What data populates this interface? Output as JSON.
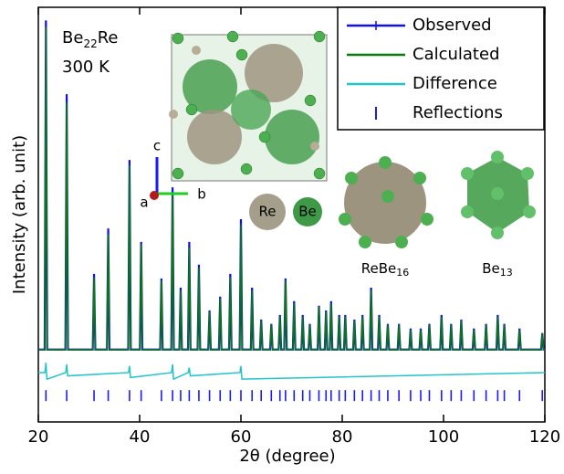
{
  "chart_data": {
    "type": "line",
    "xlabel": "2θ (degree)",
    "ylabel": "Intensity (arb. unit)",
    "xlim": [
      20,
      120
    ],
    "xticks": [
      20,
      40,
      60,
      80,
      100,
      120
    ],
    "ylim": [
      -22,
      104
    ],
    "legend": "upper right",
    "annotations": {
      "compound": [
        "Be",
        "22",
        "Re"
      ],
      "temperature": "300 K",
      "axis_c": "c",
      "axis_a": "a",
      "axis_b": "b",
      "atom_re": "Re",
      "atom_be": "Be",
      "poly_rebe": [
        "ReBe",
        "16"
      ],
      "poly_be": [
        "Be",
        "13"
      ]
    },
    "x": [
      20,
      21.25,
      21.5,
      21.75,
      25.35,
      25.6,
      25.85,
      30.75,
      31,
      31.25,
      33.55,
      33.8,
      34.05,
      37.75,
      38,
      38.25,
      40.05,
      40.3,
      40.55,
      44.05,
      44.3,
      44.55,
      46.25,
      46.5,
      46.75,
      47.85,
      48.1,
      48.35,
      49.55,
      49.8,
      50.05,
      51.45,
      51.7,
      51.95,
      53.55,
      53.8,
      54.05,
      55.65,
      55.9,
      56.15,
      57.65,
      57.9,
      58.15,
      59.75,
      60,
      60.25,
      61.95,
      62.2,
      62.45,
      63.75,
      64,
      64.25,
      65.75,
      66,
      66.25,
      67.45,
      67.7,
      67.95,
      68.55,
      68.8,
      69.05,
      70.25,
      70.5,
      70.75,
      71.95,
      72.2,
      72.45,
      73.35,
      73.6,
      73.85,
      75.15,
      75.4,
      75.65,
      76.55,
      76.8,
      77.05,
      77.55,
      77.8,
      78.05,
      79.15,
      79.4,
      79.65,
      80.35,
      80.6,
      80.85,
      82.15,
      82.4,
      82.65,
      83.75,
      84,
      84.25,
      85.45,
      85.7,
      85.95,
      87.05,
      87.3,
      87.55,
      88.75,
      89,
      89.25,
      90.95,
      91.2,
      91.45,
      93.25,
      93.5,
      93.75,
      95.25,
      95.5,
      95.75,
      96.95,
      97.2,
      97.45,
      99.35,
      99.6,
      99.85,
      101.25,
      101.5,
      101.75,
      103.25,
      103.5,
      103.75,
      105.75,
      106,
      106.25,
      108.15,
      108.4,
      108.65,
      110.45,
      110.7,
      110.95,
      111.75,
      112,
      112.25,
      114.75,
      115,
      115.25,
      119.25,
      119.5,
      119.75,
      120
    ],
    "series": [
      {
        "name": "Observed",
        "color": "#1010e8",
        "values": [
          0,
          0,
          100,
          0,
          0,
          77.6,
          0,
          0,
          23,
          0,
          0,
          36.8,
          0,
          0,
          57.6,
          0,
          0,
          32.7,
          0,
          0,
          21.6,
          0,
          0,
          49.3,
          0,
          0,
          18.8,
          0,
          0,
          32.7,
          0,
          0,
          25.8,
          0,
          0,
          11.9,
          0,
          0,
          16.1,
          0,
          0,
          23,
          0,
          0,
          39.6,
          0,
          0,
          18.8,
          0,
          0,
          9.1,
          0,
          0,
          7.8,
          0,
          0,
          10.5,
          0,
          0,
          21.6,
          0,
          0,
          14.7,
          0,
          0,
          10.5,
          0,
          0,
          7.8,
          0,
          0,
          13.3,
          0,
          0,
          11.9,
          0,
          0,
          14.7,
          0,
          0,
          10.5,
          0,
          0,
          10.5,
          0,
          0,
          9.1,
          0,
          0,
          10.5,
          0,
          0,
          18.8,
          0,
          0,
          10.5,
          0,
          0,
          7.8,
          0,
          0,
          7.8,
          0,
          0,
          6.4,
          0,
          0,
          6.4,
          0,
          0,
          7.8,
          0,
          0,
          10.5,
          0,
          0,
          7.8,
          0,
          0,
          9.1,
          0,
          0,
          6.4,
          0,
          0,
          7.8,
          0,
          0,
          10.5,
          0,
          0,
          7.8,
          0,
          0,
          6.4,
          0,
          0,
          5,
          0,
          0
        ]
      },
      {
        "name": "Calculated",
        "color": "#0a7a0a",
        "values": [
          0,
          0,
          98,
          0,
          0,
          75,
          0,
          0,
          22,
          0,
          0,
          35,
          0,
          0,
          56,
          0,
          0,
          32,
          0,
          0,
          21,
          0,
          0,
          47,
          0,
          0,
          18,
          0,
          0,
          31,
          0,
          0,
          25,
          0,
          0,
          11.5,
          0,
          0,
          15.5,
          0,
          0,
          22,
          0,
          0,
          38,
          0,
          0,
          18,
          0,
          0,
          8.8,
          0,
          0,
          7.5,
          0,
          0,
          10,
          0,
          0,
          21,
          0,
          0,
          14,
          0,
          0,
          10,
          0,
          0,
          7.5,
          0,
          0,
          13,
          0,
          0,
          11.5,
          0,
          0,
          14,
          0,
          0,
          10,
          0,
          0,
          10,
          0,
          0,
          8.8,
          0,
          0,
          10,
          0,
          0,
          18,
          0,
          0,
          10,
          0,
          0,
          7.5,
          0,
          0,
          7.5,
          0,
          0,
          6,
          0,
          0,
          6,
          0,
          0,
          7.5,
          0,
          0,
          10,
          0,
          0,
          7.5,
          0,
          0,
          8.8,
          0,
          0,
          6,
          0,
          0,
          7.5,
          0,
          0,
          10,
          0,
          0,
          7.5,
          0,
          0,
          6,
          0,
          0,
          5,
          0,
          0
        ]
      },
      {
        "name": "Difference",
        "color": "#22c4c8",
        "x": [
          20,
          21.3,
          21.5,
          21.7,
          25.4,
          25.6,
          25.8,
          37.8,
          38,
          38.2,
          46.3,
          46.5,
          46.7,
          49.6,
          49.8,
          50,
          59.8,
          60,
          60.2,
          120
        ],
        "values": [
          -7,
          -7,
          -4,
          -9,
          -7,
          -4.5,
          -8,
          -7,
          -5,
          -8.5,
          -7,
          -4.5,
          -9,
          -7,
          -5.5,
          -8,
          -7,
          -5,
          -9,
          -7
        ]
      },
      {
        "name": "Reflections",
        "color": "#1a1aff",
        "marker": "tick",
        "x": [
          21.5,
          25.6,
          31,
          33.8,
          38,
          40.3,
          44.3,
          46.5,
          48.1,
          49.8,
          51.7,
          53.8,
          55.9,
          57.9,
          60,
          62.2,
          64,
          66,
          67.7,
          68.8,
          70.5,
          72.2,
          73.6,
          75.4,
          76.8,
          77.8,
          79.4,
          80.6,
          82.4,
          84,
          85.7,
          87.3,
          89,
          91.2,
          93.5,
          95.5,
          97.2,
          99.6,
          101.5,
          103.5,
          106,
          108.4,
          110.7,
          112,
          115,
          119.5
        ],
        "values": [
          -14,
          -14,
          -14,
          -14,
          -14,
          -14,
          -14,
          -14,
          -14,
          -14,
          -14,
          -14,
          -14,
          -14,
          -14,
          -14,
          -14,
          -14,
          -14,
          -14,
          -14,
          -14,
          -14,
          -14,
          -14,
          -14,
          -14,
          -14,
          -14,
          -14,
          -14,
          -14,
          -14,
          -14,
          -14,
          -14,
          -14,
          -14,
          -14,
          -14,
          -14,
          -14,
          -14,
          -14,
          -14,
          -14
        ]
      }
    ]
  }
}
